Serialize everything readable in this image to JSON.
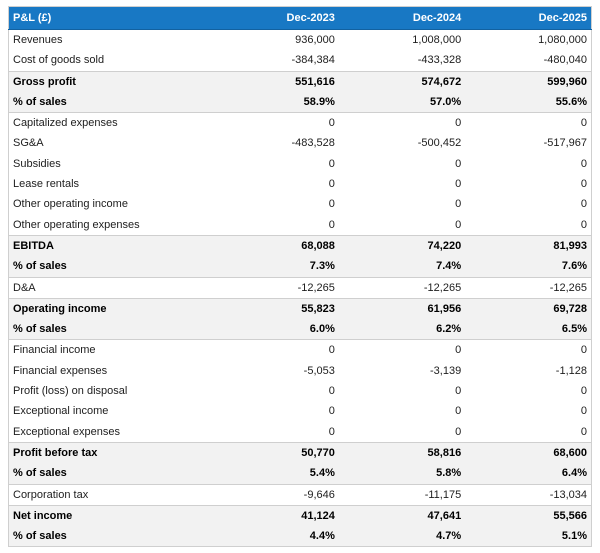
{
  "colors": {
    "header_bg": "#1878c4",
    "header_text": "#ffffff",
    "header_border": "#1261a0",
    "highlight_bg": "#f2f2f2",
    "border": "#cfcfcf"
  },
  "chart_data": {
    "type": "table",
    "title": "P&L (£)",
    "currency": "£",
    "columns": [
      "P&L (£)",
      "Dec-2023",
      "Dec-2024",
      "Dec-2025"
    ],
    "rows": [
      {
        "label": "Revenues",
        "values": [
          "936,000",
          "1,008,000",
          "1,080,000"
        ],
        "emphasis": "normal"
      },
      {
        "label": "Cost of goods sold",
        "values": [
          "-384,384",
          "-433,328",
          "-480,040"
        ],
        "emphasis": "normal"
      },
      {
        "label": "Gross profit",
        "values": [
          "551,616",
          "574,672",
          "599,960"
        ],
        "emphasis": "summary"
      },
      {
        "label": "% of sales",
        "values": [
          "58.9%",
          "57.0%",
          "55.6%"
        ],
        "emphasis": "percent"
      },
      {
        "label": "Capitalized expenses",
        "values": [
          "0",
          "0",
          "0"
        ],
        "emphasis": "normal"
      },
      {
        "label": "SG&A",
        "values": [
          "-483,528",
          "-500,452",
          "-517,967"
        ],
        "emphasis": "normal"
      },
      {
        "label": "Subsidies",
        "values": [
          "0",
          "0",
          "0"
        ],
        "emphasis": "normal"
      },
      {
        "label": "Lease rentals",
        "values": [
          "0",
          "0",
          "0"
        ],
        "emphasis": "normal"
      },
      {
        "label": "Other operating income",
        "values": [
          "0",
          "0",
          "0"
        ],
        "emphasis": "normal"
      },
      {
        "label": "Other operating expenses",
        "values": [
          "0",
          "0",
          "0"
        ],
        "emphasis": "normal"
      },
      {
        "label": "EBITDA",
        "values": [
          "68,088",
          "74,220",
          "81,993"
        ],
        "emphasis": "summary"
      },
      {
        "label": "% of sales",
        "values": [
          "7.3%",
          "7.4%",
          "7.6%"
        ],
        "emphasis": "percent"
      },
      {
        "label": "D&A",
        "values": [
          "-12,265",
          "-12,265",
          "-12,265"
        ],
        "emphasis": "normal"
      },
      {
        "label": "Operating income",
        "values": [
          "55,823",
          "61,956",
          "69,728"
        ],
        "emphasis": "summary"
      },
      {
        "label": "% of sales",
        "values": [
          "6.0%",
          "6.2%",
          "6.5%"
        ],
        "emphasis": "percent"
      },
      {
        "label": "Financial income",
        "values": [
          "0",
          "0",
          "0"
        ],
        "emphasis": "normal"
      },
      {
        "label": "Financial expenses",
        "values": [
          "-5,053",
          "-3,139",
          "-1,128"
        ],
        "emphasis": "normal"
      },
      {
        "label": "Profit (loss) on disposal",
        "values": [
          "0",
          "0",
          "0"
        ],
        "emphasis": "normal"
      },
      {
        "label": "Exceptional income",
        "values": [
          "0",
          "0",
          "0"
        ],
        "emphasis": "normal"
      },
      {
        "label": "Exceptional expenses",
        "values": [
          "0",
          "0",
          "0"
        ],
        "emphasis": "normal"
      },
      {
        "label": "Profit before tax",
        "values": [
          "50,770",
          "58,816",
          "68,600"
        ],
        "emphasis": "summary"
      },
      {
        "label": "% of sales",
        "values": [
          "5.4%",
          "5.8%",
          "6.4%"
        ],
        "emphasis": "percent"
      },
      {
        "label": "Corporation tax",
        "values": [
          "-9,646",
          "-11,175",
          "-13,034"
        ],
        "emphasis": "normal"
      },
      {
        "label": "Net income",
        "values": [
          "41,124",
          "47,641",
          "55,566"
        ],
        "emphasis": "summary"
      },
      {
        "label": "% of sales",
        "values": [
          "4.4%",
          "4.7%",
          "5.1%"
        ],
        "emphasis": "percent"
      }
    ]
  }
}
